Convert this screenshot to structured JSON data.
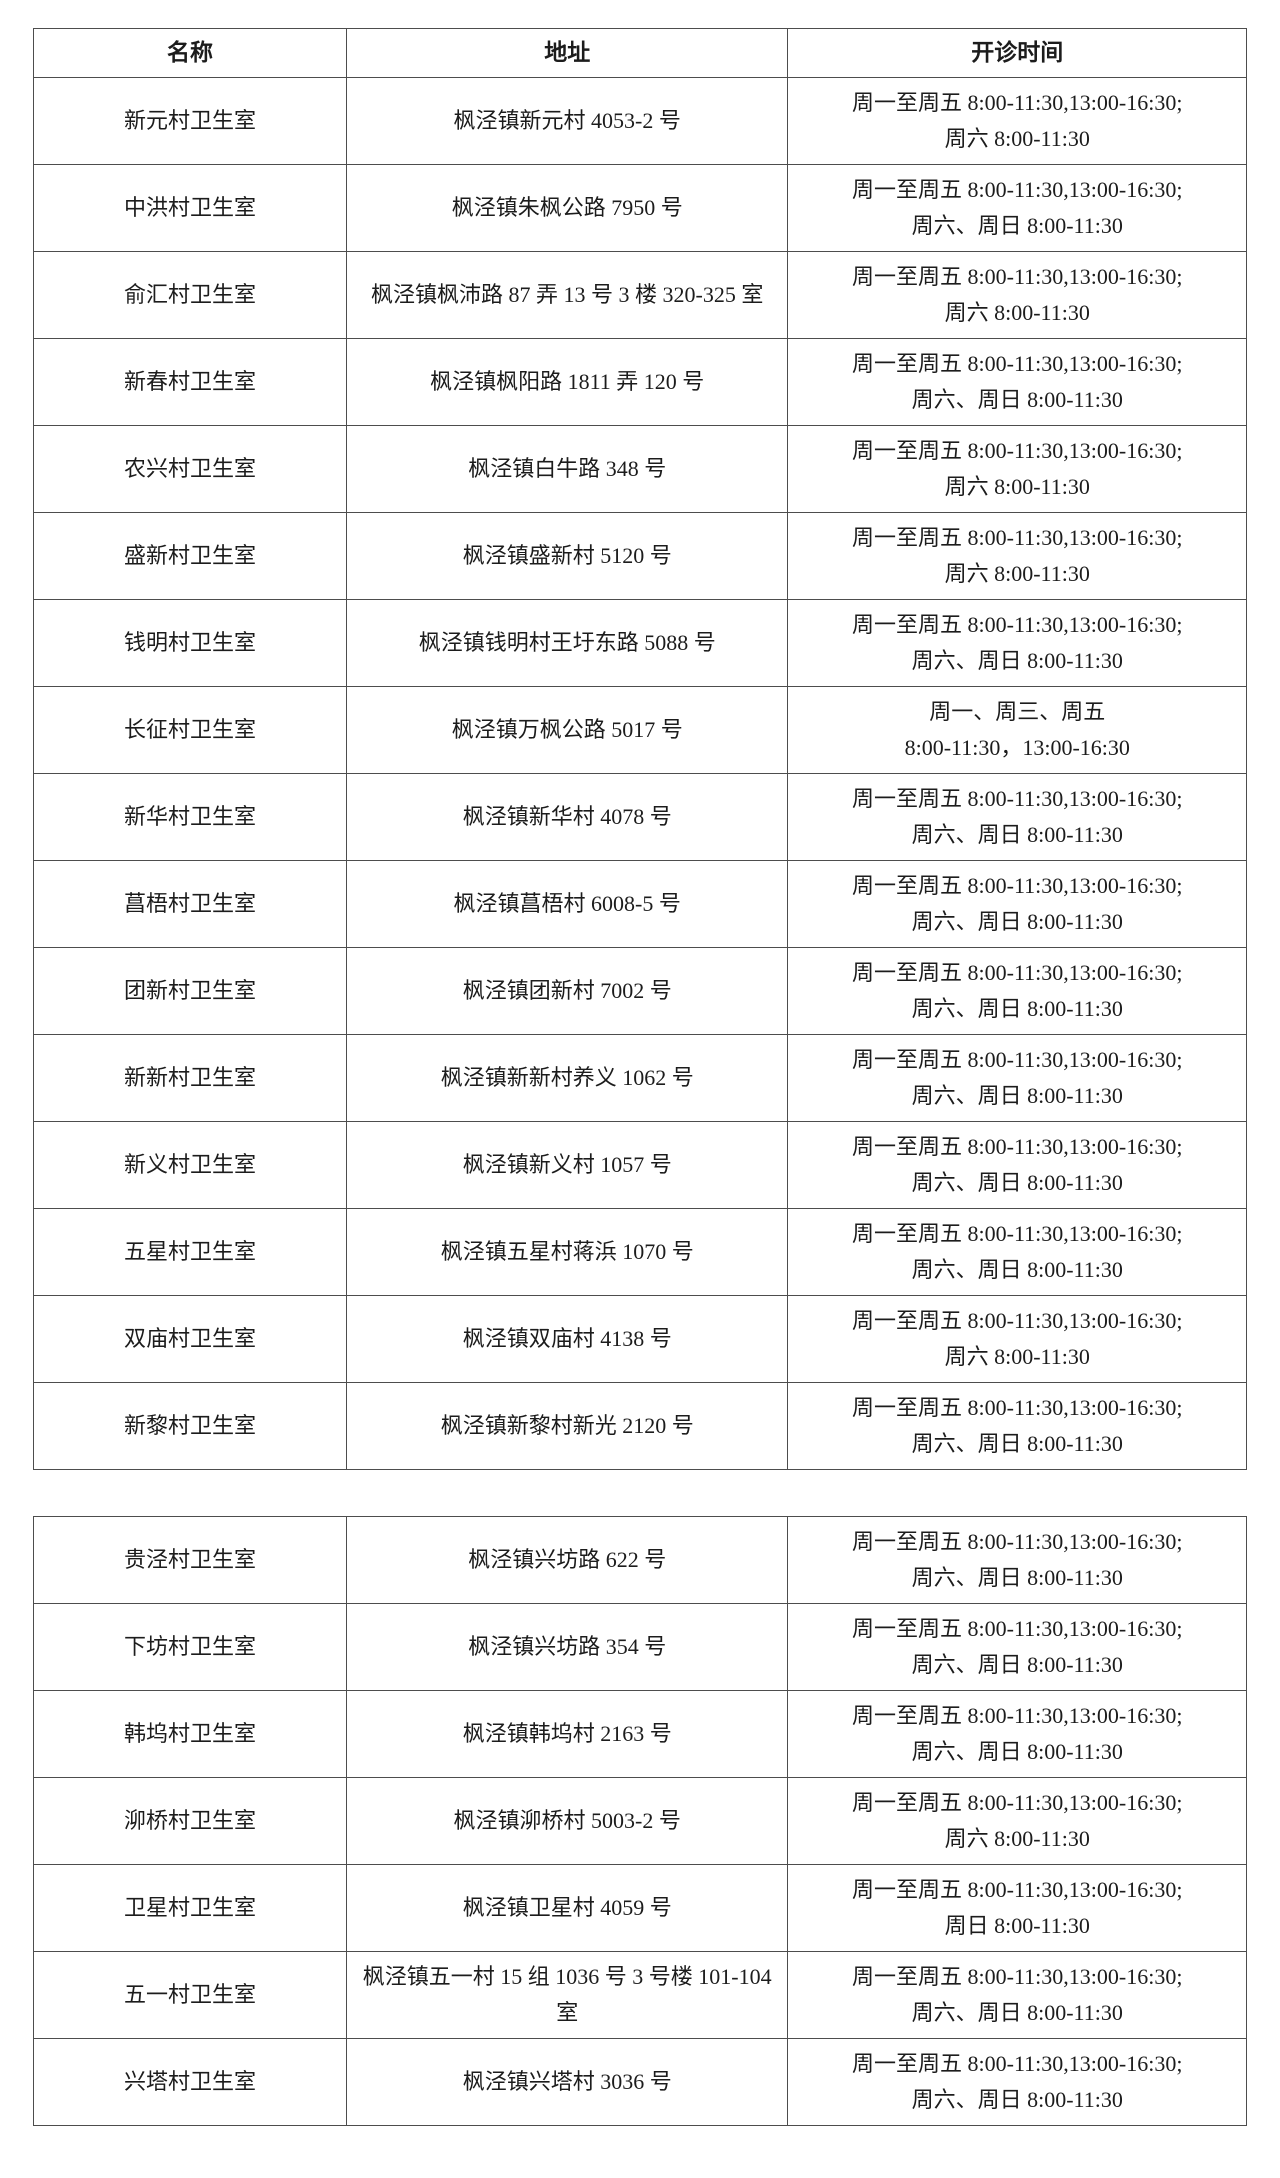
{
  "table1": {
    "headers": [
      "名称",
      "地址",
      "开诊时间"
    ],
    "rows": [
      {
        "name": "新元村卫生室",
        "address": "枫泾镇新元村 4053-2 号",
        "hours": [
          "周一至周五 8:00-11:30,13:00-16:30;",
          "周六 8:00-11:30"
        ]
      },
      {
        "name": "中洪村卫生室",
        "address": "枫泾镇朱枫公路 7950 号",
        "hours": [
          "周一至周五 8:00-11:30,13:00-16:30;",
          "周六、周日 8:00-11:30"
        ]
      },
      {
        "name": "俞汇村卫生室",
        "address": "枫泾镇枫沛路 87 弄 13 号 3 楼 320-325 室",
        "hours": [
          "周一至周五 8:00-11:30,13:00-16:30;",
          "周六 8:00-11:30"
        ]
      },
      {
        "name": "新春村卫生室",
        "address": "枫泾镇枫阳路 1811 弄 120 号",
        "hours": [
          "周一至周五 8:00-11:30,13:00-16:30;",
          "周六、周日 8:00-11:30"
        ]
      },
      {
        "name": "农兴村卫生室",
        "address": "枫泾镇白牛路 348 号",
        "hours": [
          "周一至周五 8:00-11:30,13:00-16:30;",
          "周六 8:00-11:30"
        ]
      },
      {
        "name": "盛新村卫生室",
        "address": "枫泾镇盛新村 5120 号",
        "hours": [
          "周一至周五 8:00-11:30,13:00-16:30;",
          "周六 8:00-11:30"
        ]
      },
      {
        "name": "钱明村卫生室",
        "address": "枫泾镇钱明村王圩东路 5088 号",
        "hours": [
          "周一至周五 8:00-11:30,13:00-16:30;",
          "周六、周日 8:00-11:30"
        ]
      },
      {
        "name": "长征村卫生室",
        "address": "枫泾镇万枫公路 5017 号",
        "hours": [
          "周一、周三、周五",
          "8:00-11:30，13:00-16:30"
        ]
      },
      {
        "name": "新华村卫生室",
        "address": "枫泾镇新华村 4078 号",
        "hours": [
          "周一至周五 8:00-11:30,13:00-16:30;",
          "周六、周日 8:00-11:30"
        ]
      },
      {
        "name": "菖梧村卫生室",
        "address": "枫泾镇菖梧村 6008-5 号",
        "hours": [
          "周一至周五 8:00-11:30,13:00-16:30;",
          "周六、周日 8:00-11:30"
        ]
      },
      {
        "name": "团新村卫生室",
        "address": "枫泾镇团新村 7002 号",
        "hours": [
          "周一至周五 8:00-11:30,13:00-16:30;",
          "周六、周日 8:00-11:30"
        ]
      },
      {
        "name": "新新村卫生室",
        "address": "枫泾镇新新村养义 1062 号",
        "hours": [
          "周一至周五 8:00-11:30,13:00-16:30;",
          "周六、周日 8:00-11:30"
        ]
      },
      {
        "name": "新义村卫生室",
        "address": "枫泾镇新义村 1057 号",
        "hours": [
          "周一至周五 8:00-11:30,13:00-16:30;",
          "周六、周日 8:00-11:30"
        ]
      },
      {
        "name": "五星村卫生室",
        "address": "枫泾镇五星村蒋浜 1070 号",
        "hours": [
          "周一至周五 8:00-11:30,13:00-16:30;",
          "周六、周日 8:00-11:30"
        ]
      },
      {
        "name": "双庙村卫生室",
        "address": "枫泾镇双庙村 4138 号",
        "hours": [
          "周一至周五 8:00-11:30,13:00-16:30;",
          "周六 8:00-11:30"
        ]
      },
      {
        "name": "新黎村卫生室",
        "address": "枫泾镇新黎村新光 2120 号",
        "hours": [
          "周一至周五 8:00-11:30,13:00-16:30;",
          "周六、周日 8:00-11:30"
        ]
      }
    ]
  },
  "table2": {
    "rows": [
      {
        "name": "贵泾村卫生室",
        "address": "枫泾镇兴坊路 622 号",
        "hours": [
          "周一至周五 8:00-11:30,13:00-16:30;",
          "周六、周日 8:00-11:30"
        ]
      },
      {
        "name": "下坊村卫生室",
        "address": "枫泾镇兴坊路 354 号",
        "hours": [
          "周一至周五 8:00-11:30,13:00-16:30;",
          "周六、周日 8:00-11:30"
        ]
      },
      {
        "name": "韩坞村卫生室",
        "address": "枫泾镇韩坞村 2163 号",
        "hours": [
          "周一至周五 8:00-11:30,13:00-16:30;",
          "周六、周日 8:00-11:30"
        ]
      },
      {
        "name": "泖桥村卫生室",
        "address": "枫泾镇泖桥村 5003-2 号",
        "hours": [
          "周一至周五 8:00-11:30,13:00-16:30;",
          "周六 8:00-11:30"
        ]
      },
      {
        "name": "卫星村卫生室",
        "address": "枫泾镇卫星村 4059 号",
        "hours": [
          "周一至周五 8:00-11:30,13:00-16:30;",
          "周日 8:00-11:30"
        ]
      },
      {
        "name": "五一村卫生室",
        "address": "枫泾镇五一村 15 组 1036 号 3 号楼 101-104 室",
        "hours": [
          "周一至周五 8:00-11:30,13:00-16:30;",
          "周六、周日 8:00-11:30"
        ]
      },
      {
        "name": "兴塔村卫生室",
        "address": "枫泾镇兴塔村 3036 号",
        "hours": [
          "周一至周五 8:00-11:30,13:00-16:30;",
          "周六、周日 8:00-11:30"
        ]
      }
    ]
  }
}
